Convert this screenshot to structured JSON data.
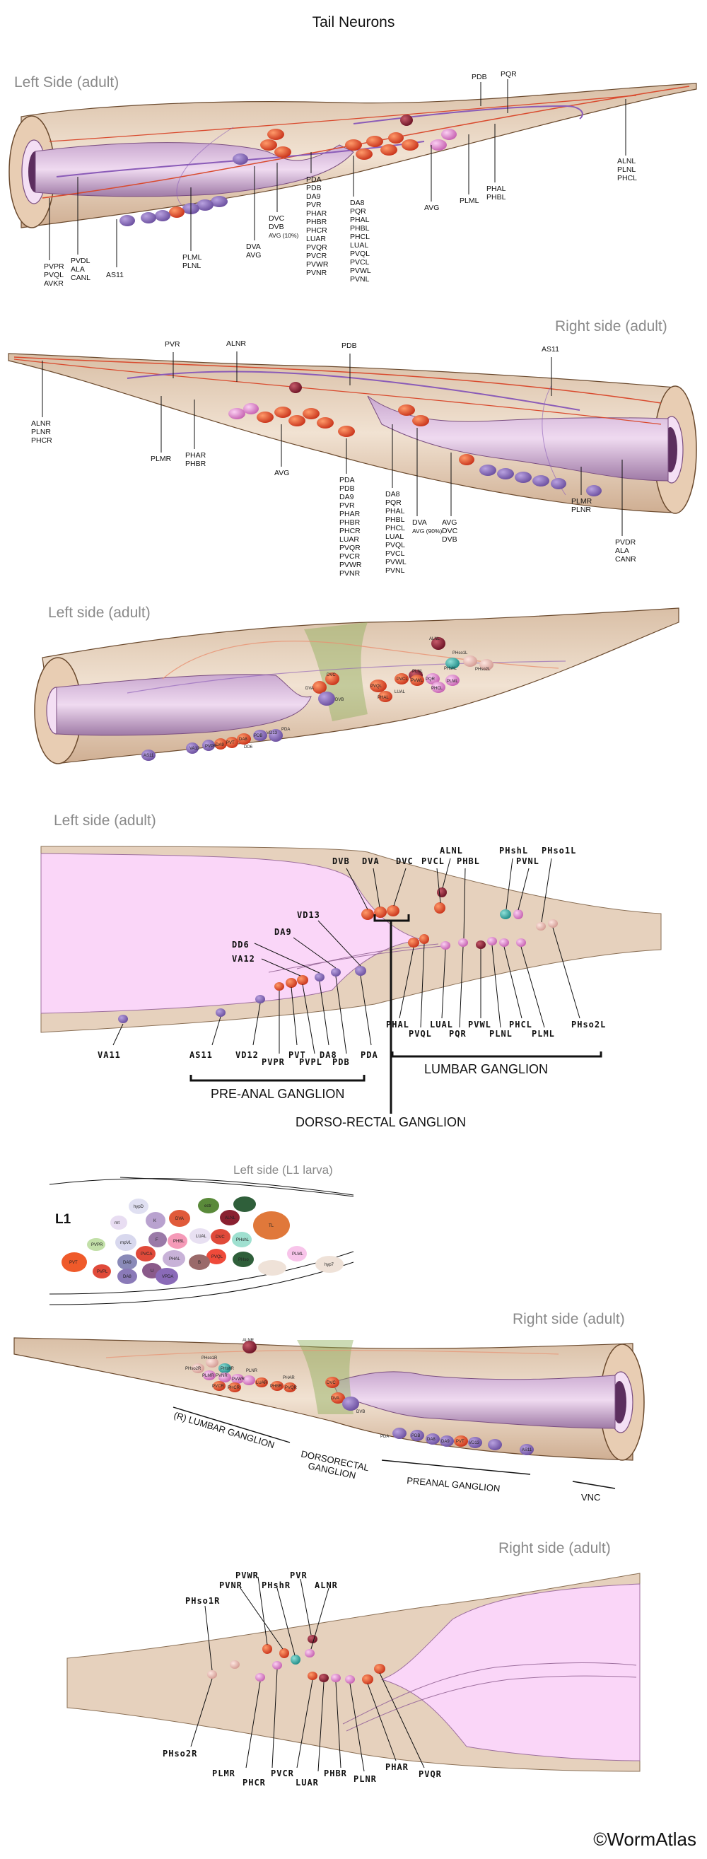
{
  "title": "Tail Neurons",
  "copyright": "©WormAtlas",
  "panel1": {
    "heading": "Left Side (adult)",
    "callouts": {
      "pdb": "PDB",
      "pqr": "PQR",
      "alnl": "ALNL",
      "plnl_r": "PLNL",
      "phcl_r": "PHCL",
      "phal": "PHAL",
      "phbl": "PHBL",
      "pmll": "PLML",
      "avg": "AVG",
      "da8_group": [
        "DA8",
        "PQR",
        "PHAL",
        "PHBL",
        "PHCL",
        "LUAL",
        "PVQL",
        "PVCL",
        "PVWL",
        "PVNL"
      ],
      "pda_group": [
        "PDA",
        "PDB",
        "DA9",
        "PVR",
        "PHAR",
        "PHBR",
        "PHCR",
        "LUAR",
        "PVQR",
        "PVCR",
        "PVWR",
        "PVNR"
      ],
      "dvc_group": [
        "DVC",
        "DVB",
        "AVG (10%)"
      ],
      "dva_group": [
        "DVA",
        "AVG"
      ],
      "plml_group": [
        "PLML",
        "PLNL"
      ],
      "as11": "AS11",
      "pvdl_group": [
        "PVDL",
        "ALA",
        "CANL"
      ],
      "pvpr_group": [
        "PVPR",
        "PVQL",
        "AVKR"
      ]
    }
  },
  "panel2": {
    "heading": "Right side (adult)",
    "callouts": {
      "pvr": "PVR",
      "alnr": "ALNR",
      "pdb": "PDB",
      "as11": "AS11",
      "alnr_group": [
        "ALNR",
        "PLNR",
        "PHCR"
      ],
      "plmr": "PLMR",
      "phar_group": [
        "PHAR",
        "PHBR"
      ],
      "avg": "AVG",
      "pda_group": [
        "PDA",
        "PDB",
        "DA9",
        "PVR",
        "PHAR",
        "PHBR",
        "PHCR",
        "LUAR",
        "PVQR",
        "PVCR",
        "PVWR",
        "PVNR"
      ],
      "da8_group": [
        "DA8",
        "PQR",
        "PHAL",
        "PHBL",
        "PHCL",
        "LUAL",
        "PVQL",
        "PVCL",
        "PVWL",
        "PVNL"
      ],
      "dva_group": [
        "DVA",
        "AVG (90%)"
      ],
      "avg_group": [
        "AVG",
        "DVC",
        "DVB"
      ],
      "plmr_group": [
        "PLMR",
        "PLNR"
      ],
      "pvdr_group": [
        "PVDR",
        "ALA",
        "CANR"
      ]
    }
  },
  "panel3": {
    "heading": "Left side (adult)",
    "cells": [
      "ALNL",
      "PHso1L",
      "PHshL",
      "PHso2L",
      "PLNL",
      "PVQL",
      "PVCL",
      "PVWL",
      "PQR",
      "PHAL",
      "LUAL",
      "PHCL",
      "PLML",
      "DVC",
      "DVA",
      "DVB",
      "PDA",
      "PDB",
      "VD13",
      "DA8",
      "PVT",
      "PVPR",
      "DA9",
      "AS11",
      "VA12",
      "DD6"
    ]
  },
  "panel4": {
    "heading": "Left side (adult)",
    "top_labels": [
      "DVB",
      "DVA",
      "DVC",
      "ALNL",
      "PHshL",
      "PHso1L",
      "PVCL",
      "PHBL",
      "PVNL"
    ],
    "mid_labels": [
      "VD13",
      "DA9",
      "DD6",
      "VA12"
    ],
    "bottom_labels": [
      "VA11",
      "AS11",
      "VD12",
      "PVPR",
      "PVT",
      "PVPL",
      "DA8",
      "PDB",
      "PDA",
      "PHAL",
      "PVQL",
      "LUAL",
      "PQR",
      "PVWL",
      "PLNL",
      "PHCL",
      "PLML",
      "PHso2L"
    ],
    "ganglia": {
      "preanal": "PRE-ANAL GANGLION",
      "dorsorectal": "DORSO-RECTAL GANGLION",
      "lumbar": "LUMBAR GANGLION"
    }
  },
  "panel5": {
    "heading": "Left side (L1 larva)",
    "stage": "L1",
    "cells": [
      "rnt",
      "hypD",
      "K",
      "DVA",
      "ectr",
      "ALNL",
      "PVPR",
      "rnpVL",
      "F",
      "PHBL",
      "LUAL",
      "DVC",
      "PHshL",
      "TL",
      "PVT",
      "PVCA",
      "DA9",
      "PHAL",
      "PVQL",
      "PLML",
      "hyp7",
      "PVPL",
      "DA8",
      "U",
      "B",
      "PHso",
      "VPDA"
    ]
  },
  "panel6": {
    "heading": "Right side (adult)",
    "cells": [
      "ALNR",
      "PHso1R",
      "PHshR",
      "PHso2R",
      "PLNR",
      "PVNR",
      "PVWR",
      "PLMR",
      "PVCR",
      "PHCR",
      "LUAR",
      "PHBR",
      "PHAR",
      "PVQR",
      "DVC",
      "DVA",
      "DVB",
      "PDA",
      "PDB",
      "DA8",
      "DA9",
      "PVT",
      "VD13",
      "AS11"
    ],
    "ganglia": {
      "lumbar": "(R) LUMBAR GANGLION",
      "dorsorectal": [
        "DORSORECTAL",
        "GANGLION"
      ],
      "preanal": "PREANAL GANGLION",
      "vnc": "VNC"
    }
  },
  "panel7": {
    "heading": "Right side (adult)",
    "top_labels": [
      "PVWR",
      "PVR",
      "PVNR",
      "PHshR",
      "ALNR",
      "PHso1R"
    ],
    "bottom_labels": [
      "PHso2R",
      "PLMR",
      "PHCR",
      "PVCR",
      "LUAR",
      "PHBR",
      "PLNR",
      "PHAR",
      "PVQR"
    ]
  }
}
